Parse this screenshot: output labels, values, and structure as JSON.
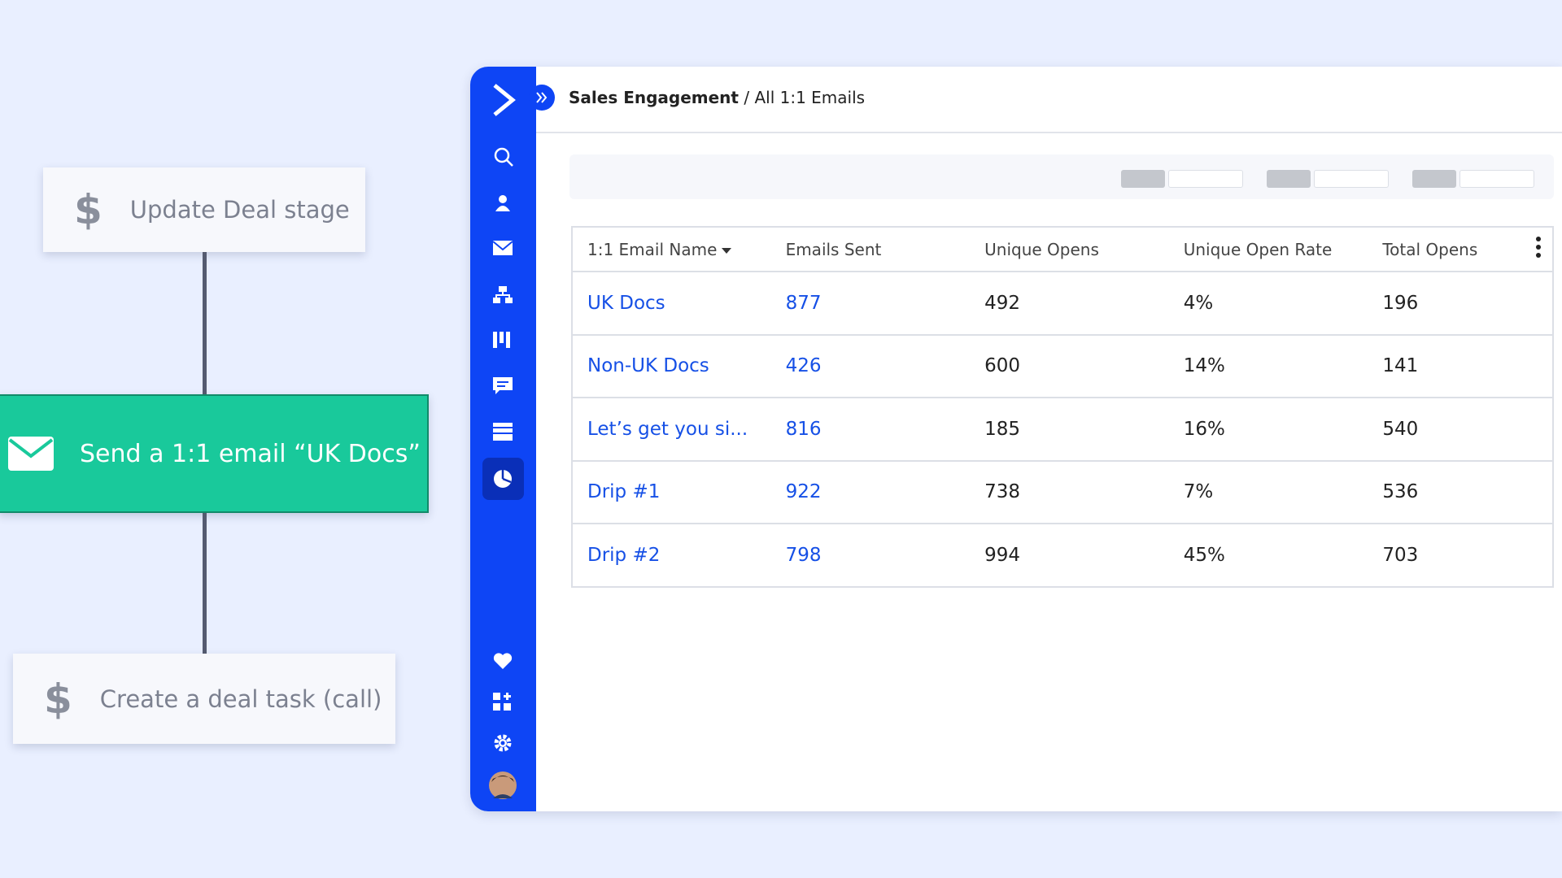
{
  "workflow": {
    "nodes": [
      {
        "label": "Update Deal stage"
      },
      {
        "label": "Send a 1:1 email “UK Docs”"
      },
      {
        "label": "Create a deal task (call)"
      }
    ]
  },
  "header": {
    "section": "Sales Engagement",
    "separator": "/",
    "page": "All 1:1 Emails"
  },
  "table": {
    "columns": [
      "1:1  Email Name",
      "Emails Sent",
      "Unique Opens",
      "Unique Open Rate",
      "Total Opens"
    ],
    "rows": [
      [
        "UK Docs",
        "877",
        "492",
        "4%",
        "196"
      ],
      [
        "Non-UK Docs",
        "426",
        "600",
        "14%",
        "141"
      ],
      [
        "Let’s get you si...",
        "816",
        "185",
        "16%",
        "540"
      ],
      [
        "Drip #1",
        "922",
        "738",
        "7%",
        "536"
      ],
      [
        "Drip #2",
        "798",
        "994",
        "45%",
        "703"
      ]
    ]
  }
}
